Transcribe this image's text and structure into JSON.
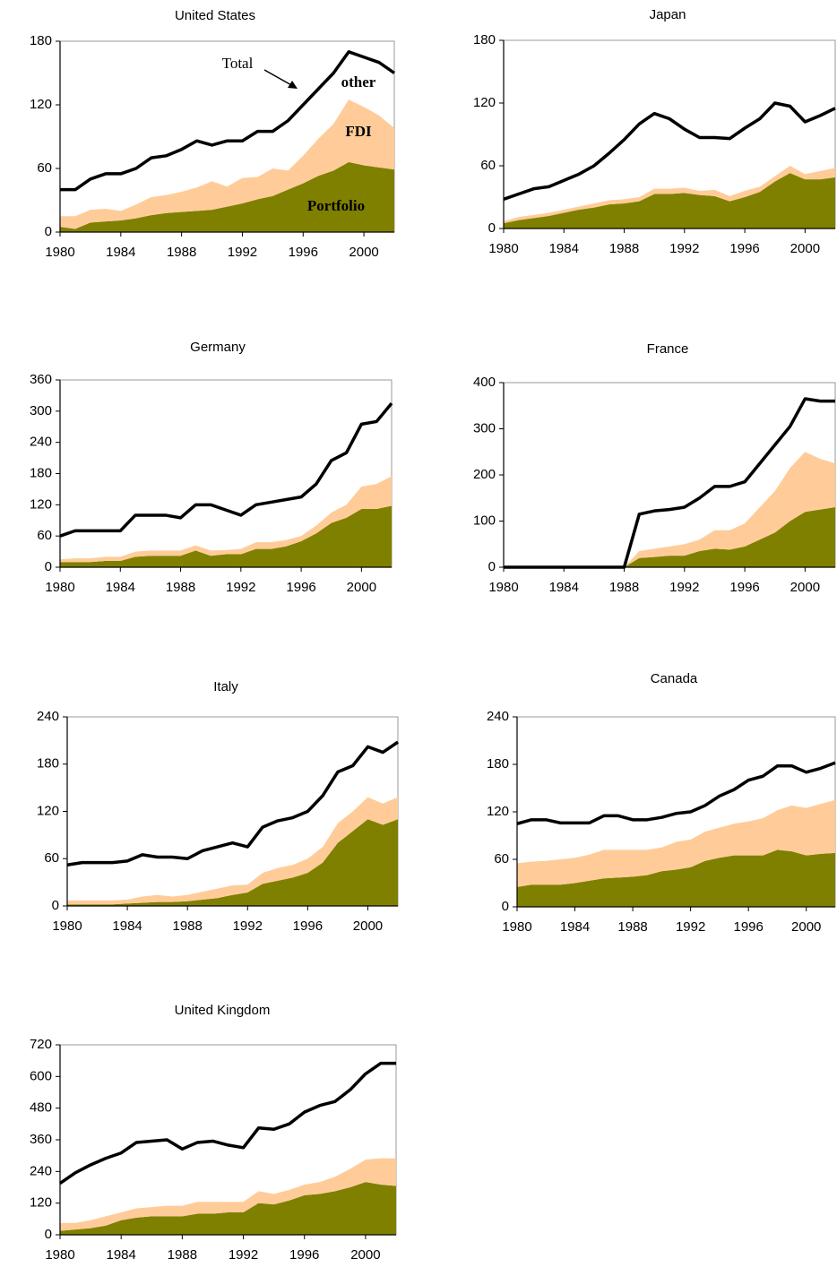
{
  "chart_data": [
    {
      "type": "area",
      "title": "United States",
      "x": [
        1980,
        1981,
        1982,
        1983,
        1984,
        1985,
        1986,
        1987,
        1988,
        1989,
        1990,
        1991,
        1992,
        1993,
        1994,
        1995,
        1996,
        1997,
        1998,
        1999,
        2000,
        2001,
        2002
      ],
      "xlim": [
        1980,
        2002
      ],
      "xticks": [
        1980,
        1984,
        1988,
        1992,
        1996,
        2000
      ],
      "ylim": [
        0,
        180
      ],
      "yticks": [
        0,
        60,
        120,
        180
      ],
      "series": [
        {
          "name": "Portfolio",
          "color": "#808000",
          "stack": true,
          "values": [
            5,
            3,
            9,
            10,
            11,
            13,
            16,
            18,
            19,
            20,
            21,
            24,
            27,
            31,
            34,
            40,
            46,
            53,
            58,
            66,
            63,
            61,
            59
          ]
        },
        {
          "name": "FDI",
          "color": "#FFCC99",
          "stack": true,
          "values": [
            10,
            12,
            12,
            12,
            9,
            13,
            17,
            17,
            19,
            22,
            27,
            19,
            24,
            21,
            26,
            18,
            26,
            35,
            44,
            59,
            55,
            49,
            39
          ]
        },
        {
          "name": "Total",
          "color": "#000000",
          "stack": false,
          "values": [
            40,
            40,
            50,
            55,
            55,
            60,
            70,
            72,
            78,
            86,
            82,
            86,
            86,
            95,
            95,
            105,
            120,
            135,
            150,
            170,
            165,
            160,
            150
          ]
        }
      ],
      "annotations": [
        "other"
      ]
    },
    {
      "type": "area",
      "title": "Japan",
      "x": [
        1980,
        1981,
        1982,
        1983,
        1984,
        1985,
        1986,
        1987,
        1988,
        1989,
        1990,
        1991,
        1992,
        1993,
        1994,
        1995,
        1996,
        1997,
        1998,
        1999,
        2000,
        2001,
        2002
      ],
      "xlim": [
        1980,
        2002
      ],
      "xticks": [
        1980,
        1984,
        1988,
        1992,
        1996,
        2000
      ],
      "ylim": [
        0,
        180
      ],
      "yticks": [
        0,
        60,
        120,
        180
      ],
      "series": [
        {
          "color": "#808000",
          "stack": true,
          "values": [
            5,
            8,
            10,
            12,
            15,
            18,
            20,
            23,
            24,
            26,
            33,
            33,
            34,
            32,
            31,
            26,
            30,
            35,
            45,
            53,
            47,
            47,
            49
          ]
        },
        {
          "color": "#FFCC99",
          "stack": true,
          "values": [
            2,
            3,
            3,
            3,
            3,
            3,
            4,
            4,
            4,
            4,
            5,
            5,
            5,
            4,
            6,
            5,
            6,
            5,
            5,
            7,
            5,
            8,
            9
          ]
        },
        {
          "color": "#000000",
          "stack": false,
          "values": [
            28,
            33,
            38,
            40,
            46,
            52,
            60,
            72,
            85,
            100,
            110,
            105,
            95,
            87,
            87,
            86,
            96,
            105,
            120,
            117,
            102,
            108,
            115
          ]
        }
      ]
    },
    {
      "type": "area",
      "title": "Germany",
      "x": [
        1980,
        1981,
        1982,
        1983,
        1984,
        1985,
        1986,
        1987,
        1988,
        1989,
        1990,
        1991,
        1992,
        1993,
        1994,
        1995,
        1996,
        1997,
        1998,
        1999,
        2000,
        2001,
        2002
      ],
      "xlim": [
        1980,
        2002
      ],
      "xticks": [
        1980,
        1984,
        1988,
        1992,
        1996,
        2000
      ],
      "ylim": [
        0,
        360
      ],
      "yticks": [
        0,
        60,
        120,
        180,
        240,
        300,
        360
      ],
      "series": [
        {
          "color": "#808000",
          "stack": true,
          "values": [
            10,
            10,
            10,
            12,
            12,
            20,
            22,
            22,
            22,
            32,
            22,
            25,
            25,
            35,
            35,
            40,
            50,
            65,
            85,
            95,
            112,
            112,
            118
          ]
        },
        {
          "color": "#FFCC99",
          "stack": true,
          "values": [
            5,
            7,
            7,
            8,
            8,
            10,
            10,
            10,
            10,
            10,
            10,
            8,
            10,
            13,
            13,
            12,
            10,
            15,
            20,
            25,
            43,
            48,
            57
          ]
        },
        {
          "color": "#000000",
          "stack": false,
          "values": [
            60,
            70,
            70,
            70,
            70,
            100,
            100,
            100,
            95,
            120,
            120,
            110,
            100,
            120,
            125,
            130,
            135,
            160,
            205,
            220,
            275,
            280,
            315
          ]
        }
      ]
    },
    {
      "type": "area",
      "title": "France",
      "x": [
        1980,
        1981,
        1982,
        1983,
        1984,
        1985,
        1986,
        1987,
        1988,
        1989,
        1990,
        1991,
        1992,
        1993,
        1994,
        1995,
        1996,
        1997,
        1998,
        1999,
        2000,
        2001,
        2002
      ],
      "xlim": [
        1980,
        2002
      ],
      "xticks": [
        1980,
        1984,
        1988,
        1992,
        1996,
        2000
      ],
      "ylim": [
        0,
        400
      ],
      "yticks": [
        0,
        100,
        200,
        300,
        400
      ],
      "series": [
        {
          "color": "#808000",
          "stack": true,
          "values": [
            0,
            0,
            0,
            0,
            0,
            0,
            0,
            0,
            0,
            20,
            22,
            25,
            25,
            35,
            40,
            38,
            45,
            60,
            75,
            100,
            120,
            125,
            130
          ]
        },
        {
          "color": "#FFCC99",
          "stack": true,
          "values": [
            0,
            0,
            0,
            0,
            0,
            0,
            0,
            0,
            0,
            15,
            18,
            20,
            25,
            25,
            40,
            42,
            50,
            70,
            90,
            115,
            130,
            110,
            95
          ]
        },
        {
          "color": "#000000",
          "stack": false,
          "values": [
            0,
            0,
            0,
            0,
            0,
            0,
            0,
            0,
            0,
            115,
            122,
            125,
            130,
            150,
            175,
            175,
            185,
            225,
            265,
            305,
            365,
            360,
            360
          ]
        }
      ]
    },
    {
      "type": "area",
      "title": "Italy",
      "x": [
        1980,
        1981,
        1982,
        1983,
        1984,
        1985,
        1986,
        1987,
        1988,
        1989,
        1990,
        1991,
        1992,
        1993,
        1994,
        1995,
        1996,
        1997,
        1998,
        1999,
        2000,
        2001,
        2002
      ],
      "xlim": [
        1980,
        2002
      ],
      "xticks": [
        1980,
        1984,
        1988,
        1992,
        1996,
        2000
      ],
      "ylim": [
        0,
        240
      ],
      "yticks": [
        0,
        60,
        120,
        180,
        240
      ],
      "series": [
        {
          "color": "#808000",
          "stack": true,
          "values": [
            2,
            2,
            2,
            2,
            3,
            4,
            5,
            5,
            6,
            8,
            10,
            14,
            17,
            28,
            32,
            36,
            42,
            55,
            80,
            95,
            110,
            103,
            110
          ]
        },
        {
          "color": "#FFCC99",
          "stack": true,
          "values": [
            5,
            5,
            5,
            5,
            5,
            8,
            9,
            7,
            8,
            10,
            12,
            12,
            10,
            14,
            16,
            16,
            18,
            20,
            25,
            25,
            28,
            27,
            28
          ]
        },
        {
          "color": "#000000",
          "stack": false,
          "values": [
            52,
            55,
            55,
            55,
            57,
            65,
            62,
            62,
            60,
            70,
            75,
            80,
            75,
            100,
            108,
            112,
            120,
            140,
            170,
            178,
            202,
            195,
            208
          ]
        }
      ]
    },
    {
      "type": "area",
      "title": "Canada",
      "x": [
        1980,
        1981,
        1982,
        1983,
        1984,
        1985,
        1986,
        1987,
        1988,
        1989,
        1990,
        1991,
        1992,
        1993,
        1994,
        1995,
        1996,
        1997,
        1998,
        1999,
        2000,
        2001,
        2002
      ],
      "xlim": [
        1980,
        2002
      ],
      "xticks": [
        1980,
        1984,
        1988,
        1992,
        1996,
        2000
      ],
      "ylim": [
        0,
        240
      ],
      "yticks": [
        0,
        60,
        120,
        180,
        240
      ],
      "series": [
        {
          "color": "#808000",
          "stack": true,
          "values": [
            25,
            28,
            28,
            28,
            30,
            33,
            36,
            37,
            38,
            40,
            45,
            47,
            50,
            58,
            62,
            65,
            65,
            65,
            72,
            70,
            65,
            67,
            68
          ]
        },
        {
          "color": "#FFCC99",
          "stack": true,
          "values": [
            30,
            29,
            30,
            32,
            32,
            33,
            36,
            35,
            34,
            32,
            30,
            35,
            35,
            37,
            38,
            40,
            43,
            47,
            50,
            58,
            60,
            63,
            67
          ]
        },
        {
          "color": "#000000",
          "stack": false,
          "values": [
            105,
            110,
            110,
            106,
            106,
            106,
            115,
            115,
            110,
            110,
            113,
            118,
            120,
            128,
            140,
            148,
            160,
            165,
            178,
            178,
            170,
            175,
            182
          ]
        }
      ]
    },
    {
      "type": "area",
      "title": "United Kingdom",
      "x": [
        1980,
        1981,
        1982,
        1983,
        1984,
        1985,
        1986,
        1987,
        1988,
        1989,
        1990,
        1991,
        1992,
        1993,
        1994,
        1995,
        1996,
        1997,
        1998,
        1999,
        2000,
        2001,
        2002
      ],
      "xlim": [
        1980,
        2002
      ],
      "xticks": [
        1980,
        1984,
        1988,
        1992,
        1996,
        2000
      ],
      "ylim": [
        0,
        720
      ],
      "yticks": [
        0,
        120,
        240,
        360,
        480,
        600,
        720
      ],
      "series": [
        {
          "color": "#808000",
          "stack": true,
          "values": [
            15,
            20,
            25,
            35,
            55,
            65,
            70,
            70,
            70,
            80,
            80,
            85,
            85,
            120,
            115,
            130,
            150,
            155,
            165,
            180,
            200,
            190,
            185
          ]
        },
        {
          "color": "#FFCC99",
          "stack": true,
          "values": [
            30,
            25,
            30,
            35,
            30,
            35,
            35,
            40,
            40,
            45,
            45,
            40,
            40,
            45,
            40,
            40,
            40,
            45,
            55,
            70,
            85,
            100,
            105
          ]
        },
        {
          "color": "#000000",
          "stack": false,
          "values": [
            195,
            235,
            265,
            290,
            310,
            350,
            355,
            360,
            325,
            350,
            355,
            340,
            330,
            405,
            400,
            420,
            465,
            490,
            505,
            550,
            610,
            650,
            650
          ]
        }
      ]
    }
  ]
}
